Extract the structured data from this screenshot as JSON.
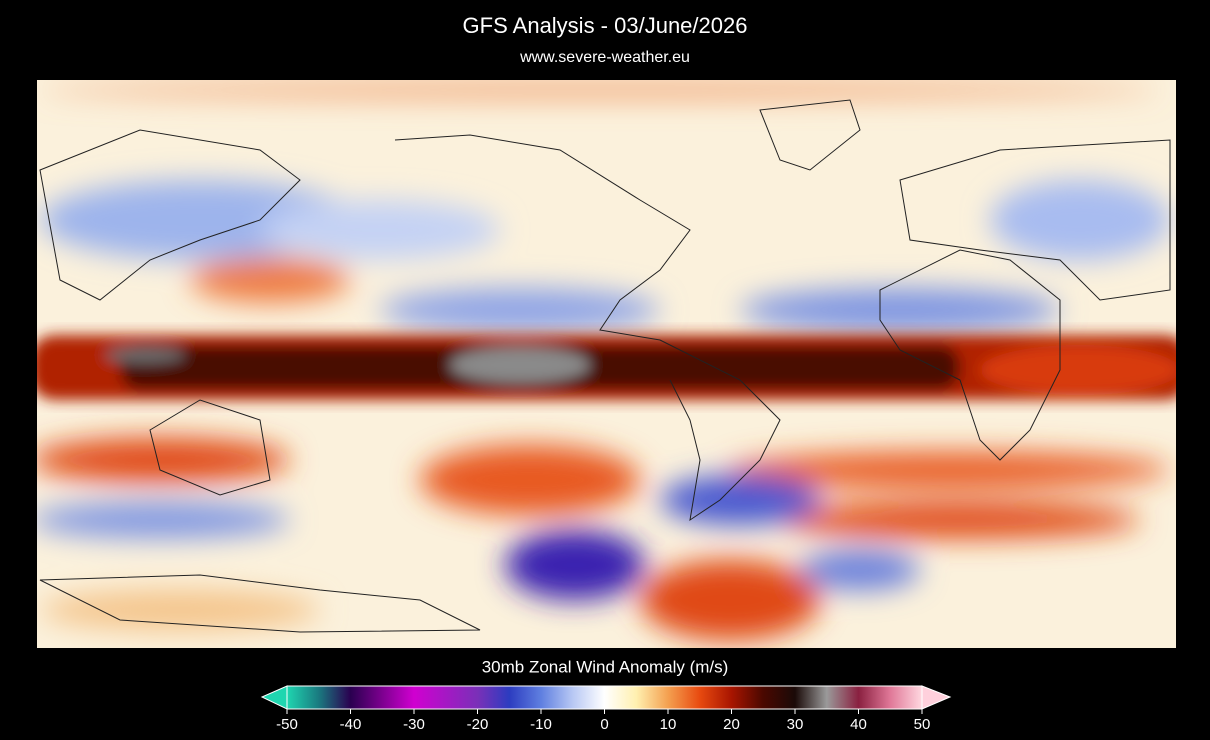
{
  "header": {
    "title": "GFS Analysis - 03/June/2026",
    "subtitle": "www.severe-weather.eu"
  },
  "colorbar": {
    "label": "30mb Zonal Wind Anomaly (m/s)",
    "range": [
      -50,
      50
    ],
    "ticks": [
      -50,
      -40,
      -30,
      -20,
      -10,
      0,
      10,
      20,
      30,
      40,
      50
    ]
  }
}
